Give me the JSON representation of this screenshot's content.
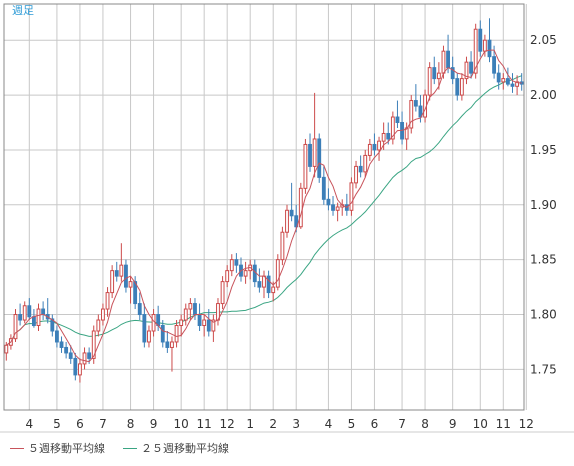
{
  "chart_data": {
    "type": "candlestick",
    "period_label": "週足",
    "y_ticks": [
      "2.05",
      "2.00",
      "1.95",
      "1.90",
      "1.85",
      "1.80",
      "1.75"
    ],
    "y_tick_values": [
      2.05,
      2.0,
      1.95,
      1.9,
      1.85,
      1.8,
      1.75
    ],
    "ylim": [
      1.713,
      2.083
    ],
    "x_ticks": [
      "4",
      "5",
      "6",
      "7",
      "8",
      "9",
      "10",
      "11",
      "12",
      "1",
      "2",
      "3",
      "4",
      "5",
      "6",
      "7",
      "8",
      "9",
      "10",
      "11",
      "12"
    ],
    "x_tick_index": [
      5,
      11,
      16,
      21,
      27,
      32,
      38,
      43,
      48,
      53,
      58,
      63,
      70,
      75,
      80,
      86,
      91,
      97,
      103,
      108,
      113
    ],
    "series": [
      {
        "name": "５週移動平均線",
        "color": "#c8535b"
      },
      {
        "name": "２５週移動平均線",
        "color": "#3aa583"
      }
    ],
    "colors": {
      "up": "#cc4a4a",
      "down": "#3c7fb8",
      "grid": "#c8c8c8",
      "axis": "#888888"
    },
    "candles": [
      [
        1.765,
        1.775,
        1.758,
        1.772
      ],
      [
        1.772,
        1.782,
        1.768,
        1.778
      ],
      [
        1.778,
        1.805,
        1.775,
        1.8
      ],
      [
        1.8,
        1.81,
        1.79,
        1.795
      ],
      [
        1.795,
        1.812,
        1.792,
        1.808
      ],
      [
        1.808,
        1.815,
        1.795,
        1.798
      ],
      [
        1.798,
        1.805,
        1.788,
        1.79
      ],
      [
        1.79,
        1.81,
        1.785,
        1.805
      ],
      [
        1.805,
        1.812,
        1.795,
        1.8
      ],
      [
        1.8,
        1.815,
        1.792,
        1.796
      ],
      [
        1.796,
        1.8,
        1.78,
        1.785
      ],
      [
        1.785,
        1.79,
        1.77,
        1.775
      ],
      [
        1.775,
        1.78,
        1.765,
        1.77
      ],
      [
        1.77,
        1.775,
        1.76,
        1.765
      ],
      [
        1.765,
        1.772,
        1.755,
        1.76
      ],
      [
        1.76,
        1.765,
        1.74,
        1.745
      ],
      [
        1.745,
        1.76,
        1.738,
        1.755
      ],
      [
        1.755,
        1.77,
        1.75,
        1.765
      ],
      [
        1.765,
        1.77,
        1.755,
        1.76
      ],
      [
        1.76,
        1.79,
        1.755,
        1.785
      ],
      [
        1.785,
        1.8,
        1.78,
        1.795
      ],
      [
        1.795,
        1.81,
        1.79,
        1.805
      ],
      [
        1.805,
        1.825,
        1.798,
        1.82
      ],
      [
        1.82,
        1.845,
        1.815,
        1.84
      ],
      [
        1.84,
        1.848,
        1.83,
        1.835
      ],
      [
        1.835,
        1.865,
        1.83,
        1.845
      ],
      [
        1.845,
        1.85,
        1.82,
        1.825
      ],
      [
        1.825,
        1.835,
        1.81,
        1.83
      ],
      [
        1.83,
        1.835,
        1.805,
        1.81
      ],
      [
        1.81,
        1.82,
        1.795,
        1.8
      ],
      [
        1.8,
        1.81,
        1.77,
        1.775
      ],
      [
        1.775,
        1.79,
        1.77,
        1.785
      ],
      [
        1.785,
        1.805,
        1.78,
        1.8
      ],
      [
        1.8,
        1.808,
        1.785,
        1.79
      ],
      [
        1.79,
        1.795,
        1.77,
        1.775
      ],
      [
        1.775,
        1.785,
        1.765,
        1.77
      ],
      [
        1.77,
        1.78,
        1.748,
        1.775
      ],
      [
        1.775,
        1.795,
        1.77,
        1.79
      ],
      [
        1.79,
        1.8,
        1.78,
        1.795
      ],
      [
        1.795,
        1.81,
        1.79,
        1.805
      ],
      [
        1.805,
        1.815,
        1.795,
        1.81
      ],
      [
        1.81,
        1.815,
        1.795,
        1.8
      ],
      [
        1.8,
        1.81,
        1.785,
        1.79
      ],
      [
        1.79,
        1.8,
        1.78,
        1.795
      ],
      [
        1.795,
        1.805,
        1.78,
        1.785
      ],
      [
        1.785,
        1.8,
        1.775,
        1.795
      ],
      [
        1.795,
        1.815,
        1.79,
        1.81
      ],
      [
        1.81,
        1.835,
        1.805,
        1.83
      ],
      [
        1.83,
        1.845,
        1.825,
        1.84
      ],
      [
        1.84,
        1.855,
        1.835,
        1.85
      ],
      [
        1.85,
        1.856,
        1.838,
        1.845
      ],
      [
        1.845,
        1.852,
        1.83,
        1.835
      ],
      [
        1.835,
        1.848,
        1.828,
        1.84
      ],
      [
        1.84,
        1.85,
        1.832,
        1.845
      ],
      [
        1.845,
        1.85,
        1.825,
        1.83
      ],
      [
        1.83,
        1.842,
        1.82,
        1.825
      ],
      [
        1.825,
        1.84,
        1.815,
        1.835
      ],
      [
        1.835,
        1.84,
        1.815,
        1.82
      ],
      [
        1.82,
        1.83,
        1.812,
        1.825
      ],
      [
        1.825,
        1.855,
        1.822,
        1.85
      ],
      [
        1.85,
        1.88,
        1.845,
        1.875
      ],
      [
        1.875,
        1.9,
        1.87,
        1.895
      ],
      [
        1.895,
        1.92,
        1.885,
        1.89
      ],
      [
        1.89,
        1.9,
        1.875,
        1.88
      ],
      [
        1.88,
        1.92,
        1.878,
        1.915
      ],
      [
        1.915,
        1.96,
        1.91,
        1.955
      ],
      [
        1.955,
        1.965,
        1.93,
        1.935
      ],
      [
        1.935,
        2.002,
        1.925,
        1.96
      ],
      [
        1.96,
        1.965,
        1.92,
        1.925
      ],
      [
        1.925,
        1.935,
        1.9,
        1.905
      ],
      [
        1.905,
        1.915,
        1.895,
        1.9
      ],
      [
        1.9,
        1.908,
        1.89,
        1.895
      ],
      [
        1.895,
        1.902,
        1.885,
        1.898
      ],
      [
        1.898,
        1.905,
        1.89,
        1.9
      ],
      [
        1.9,
        1.91,
        1.89,
        1.895
      ],
      [
        1.895,
        1.925,
        1.89,
        1.92
      ],
      [
        1.92,
        1.94,
        1.915,
        1.935
      ],
      [
        1.935,
        1.945,
        1.925,
        1.93
      ],
      [
        1.93,
        1.95,
        1.925,
        1.945
      ],
      [
        1.945,
        1.96,
        1.94,
        1.955
      ],
      [
        1.955,
        1.965,
        1.945,
        1.95
      ],
      [
        1.95,
        1.962,
        1.94,
        1.958
      ],
      [
        1.958,
        1.975,
        1.95,
        1.965
      ],
      [
        1.965,
        1.975,
        1.955,
        1.96
      ],
      [
        1.96,
        1.985,
        1.955,
        1.98
      ],
      [
        1.98,
        1.995,
        1.97,
        1.975
      ],
      [
        1.975,
        1.985,
        1.955,
        1.96
      ],
      [
        1.96,
        1.975,
        1.95,
        1.97
      ],
      [
        1.97,
        2.0,
        1.965,
        1.995
      ],
      [
        1.995,
        2.01,
        1.985,
        1.99
      ],
      [
        1.99,
        2.0,
        1.975,
        1.98
      ],
      [
        1.98,
        2.005,
        1.975,
        2.0
      ],
      [
        2.0,
        2.03,
        1.995,
        2.025
      ],
      [
        2.025,
        2.035,
        2.01,
        2.015
      ],
      [
        2.015,
        2.03,
        2.005,
        2.02
      ],
      [
        2.02,
        2.045,
        2.015,
        2.04
      ],
      [
        2.04,
        2.055,
        2.02,
        2.025
      ],
      [
        2.025,
        2.035,
        2.01,
        2.015
      ],
      [
        2.015,
        2.02,
        1.995,
        2.0
      ],
      [
        2.0,
        2.02,
        1.995,
        2.015
      ],
      [
        2.015,
        2.035,
        2.01,
        2.03
      ],
      [
        2.03,
        2.04,
        2.015,
        2.02
      ],
      [
        2.02,
        2.065,
        2.015,
        2.06
      ],
      [
        2.06,
        2.068,
        2.035,
        2.04
      ],
      [
        2.04,
        2.055,
        2.035,
        2.05
      ],
      [
        2.05,
        2.07,
        2.03,
        2.035
      ],
      [
        2.035,
        2.045,
        2.015,
        2.02
      ],
      [
        2.02,
        2.028,
        2.005,
        2.012
      ],
      [
        2.012,
        2.02,
        2.005,
        2.015
      ],
      [
        2.015,
        2.025,
        2.008,
        2.01
      ],
      [
        2.01,
        2.02,
        2.002,
        2.008
      ],
      [
        2.008,
        2.018,
        2.0,
        2.012
      ],
      [
        2.012,
        2.02,
        2.004,
        2.01
      ]
    ]
  }
}
